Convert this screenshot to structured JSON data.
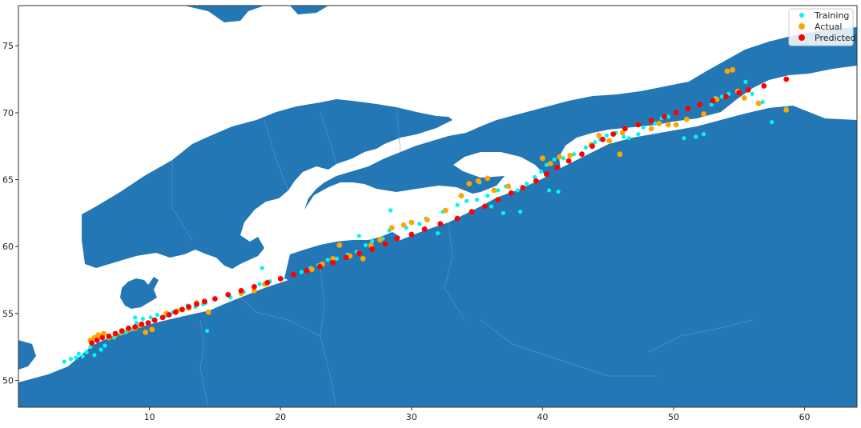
{
  "chart_data": {
    "type": "scatter",
    "title": "",
    "xlabel": "",
    "ylabel": "",
    "xlim": [
      0,
      64
    ],
    "ylim": [
      48,
      78
    ],
    "xticks": [
      10,
      20,
      30,
      40,
      50,
      60
    ],
    "yticks": [
      50,
      55,
      60,
      65,
      70,
      75
    ],
    "grid": false,
    "legend_position": "top-right",
    "background": "map of Northern Europe: land shaded blue, sea white",
    "colors": {
      "land": "#2477b5",
      "sea": "#ffffff",
      "frame": "#333333"
    },
    "series": [
      {
        "name": "Training",
        "color": "#00f5f5",
        "marker_size": "small",
        "points": [
          [
            3.5,
            51.4
          ],
          [
            4.0,
            51.6
          ],
          [
            4.4,
            51.7
          ],
          [
            4.9,
            51.8
          ],
          [
            5.2,
            52.1
          ],
          [
            5.8,
            51.9
          ],
          [
            6.3,
            52.3
          ],
          [
            4.6,
            52.0
          ],
          [
            5.5,
            52.5
          ],
          [
            6.6,
            52.6
          ],
          [
            7.3,
            53.2
          ],
          [
            7.8,
            53.5
          ],
          [
            8.2,
            53.6
          ],
          [
            8.6,
            53.8
          ],
          [
            9.0,
            54.3
          ],
          [
            8.9,
            54.7
          ],
          [
            9.5,
            54.6
          ],
          [
            10.1,
            54.7
          ],
          [
            10.6,
            54.9
          ],
          [
            11.2,
            54.8
          ],
          [
            11.8,
            55.1
          ],
          [
            12.4,
            55.3
          ],
          [
            12.9,
            55.6
          ],
          [
            13.5,
            55.5
          ],
          [
            14.1,
            55.7
          ],
          [
            14.4,
            53.7
          ],
          [
            16.2,
            56.2
          ],
          [
            17.2,
            56.6
          ],
          [
            18.4,
            57.2
          ],
          [
            19.2,
            57.4
          ],
          [
            20.1,
            57.6
          ],
          [
            21.6,
            58.1
          ],
          [
            22.3,
            58.4
          ],
          [
            22.9,
            58.6
          ],
          [
            23.6,
            59.0
          ],
          [
            24.3,
            59.1
          ],
          [
            25.1,
            59.4
          ],
          [
            25.8,
            59.6
          ],
          [
            26.5,
            60.1
          ],
          [
            27.0,
            60.4
          ],
          [
            27.8,
            60.6
          ],
          [
            28.3,
            61.2
          ],
          [
            29.6,
            61.4
          ],
          [
            30.6,
            61.7
          ],
          [
            31.1,
            62.1
          ],
          [
            32.4,
            62.6
          ],
          [
            33.5,
            63.1
          ],
          [
            34.2,
            63.4
          ],
          [
            35.0,
            63.5
          ],
          [
            35.8,
            63.8
          ],
          [
            36.6,
            64.2
          ],
          [
            37.2,
            64.5
          ],
          [
            38.1,
            64.2
          ],
          [
            38.8,
            64.7
          ],
          [
            39.4,
            65.2
          ],
          [
            39.9,
            65.6
          ],
          [
            40.3,
            66.1
          ],
          [
            40.9,
            66.5
          ],
          [
            41.6,
            66.6
          ],
          [
            42.4,
            66.9
          ],
          [
            43.3,
            67.4
          ],
          [
            43.8,
            67.6
          ],
          [
            44.4,
            68.0
          ],
          [
            44.9,
            68.3
          ],
          [
            45.6,
            68.5
          ],
          [
            46.2,
            68.2
          ],
          [
            46.6,
            68.1
          ],
          [
            47.3,
            68.4
          ],
          [
            47.7,
            68.9
          ],
          [
            48.6,
            69.2
          ],
          [
            49.1,
            69.6
          ],
          [
            49.6,
            69.7
          ],
          [
            50.2,
            70.0
          ],
          [
            50.8,
            68.1
          ],
          [
            51.7,
            68.2
          ],
          [
            52.3,
            68.4
          ],
          [
            52.9,
            70.6
          ],
          [
            53.2,
            71.1
          ],
          [
            53.7,
            71.2
          ],
          [
            54.2,
            71.4
          ],
          [
            54.9,
            71.6
          ],
          [
            55.5,
            72.3
          ],
          [
            56.0,
            71.4
          ],
          [
            56.8,
            70.8
          ],
          [
            57.5,
            69.3
          ],
          [
            58.6,
            70.3
          ],
          [
            38.3,
            62.6
          ],
          [
            37.0,
            62.5
          ],
          [
            36.1,
            63.0
          ],
          [
            35.2,
            64.8
          ],
          [
            40.5,
            64.2
          ],
          [
            41.2,
            64.1
          ],
          [
            44.0,
            67.8
          ],
          [
            28.4,
            62.7
          ],
          [
            32.0,
            61.0
          ],
          [
            26.0,
            60.8
          ],
          [
            18.6,
            58.4
          ],
          [
            14.3,
            55.8
          ]
        ]
      },
      {
        "name": "Actual",
        "color": "#ffa500",
        "marker_size": "medium",
        "points": [
          [
            5.5,
            53.0
          ],
          [
            5.8,
            53.2
          ],
          [
            6.1,
            53.4
          ],
          [
            6.5,
            53.5
          ],
          [
            6.9,
            53.2
          ],
          [
            7.4,
            53.4
          ],
          [
            7.9,
            53.6
          ],
          [
            8.4,
            53.8
          ],
          [
            8.9,
            53.9
          ],
          [
            9.3,
            54.1
          ],
          [
            9.7,
            53.6
          ],
          [
            10.2,
            53.8
          ],
          [
            11.3,
            55.0
          ],
          [
            12.1,
            55.2
          ],
          [
            13.0,
            55.4
          ],
          [
            13.6,
            55.8
          ],
          [
            14.5,
            55.1
          ],
          [
            17.0,
            56.5
          ],
          [
            18.0,
            56.7
          ],
          [
            18.8,
            57.2
          ],
          [
            22.4,
            58.3
          ],
          [
            23.2,
            58.7
          ],
          [
            24.0,
            59.1
          ],
          [
            24.5,
            60.1
          ],
          [
            25.3,
            59.3
          ],
          [
            26.3,
            59.1
          ],
          [
            26.9,
            60.1
          ],
          [
            27.6,
            60.5
          ],
          [
            28.5,
            61.4
          ],
          [
            29.4,
            61.6
          ],
          [
            30.0,
            61.8
          ],
          [
            31.2,
            62.0
          ],
          [
            32.6,
            62.7
          ],
          [
            33.8,
            63.8
          ],
          [
            34.4,
            64.7
          ],
          [
            35.1,
            64.9
          ],
          [
            35.8,
            65.1
          ],
          [
            36.3,
            64.2
          ],
          [
            37.4,
            64.5
          ],
          [
            40.0,
            66.6
          ],
          [
            40.6,
            66.2
          ],
          [
            41.3,
            66.7
          ],
          [
            42.1,
            66.8
          ],
          [
            43.7,
            67.6
          ],
          [
            44.3,
            68.3
          ],
          [
            45.1,
            67.9
          ],
          [
            45.9,
            66.9
          ],
          [
            46.1,
            68.5
          ],
          [
            48.3,
            68.8
          ],
          [
            48.9,
            69.2
          ],
          [
            49.6,
            69.1
          ],
          [
            50.2,
            69.1
          ],
          [
            51.0,
            69.5
          ],
          [
            52.3,
            69.9
          ],
          [
            53.3,
            71.0
          ],
          [
            54.1,
            73.1
          ],
          [
            54.5,
            73.2
          ],
          [
            54.9,
            71.6
          ],
          [
            55.4,
            71.1
          ],
          [
            56.5,
            70.7
          ],
          [
            58.6,
            70.2
          ]
        ]
      },
      {
        "name": "Predicted",
        "color": "#ff0000",
        "marker_size": "medium",
        "points": [
          [
            5.6,
            52.8
          ],
          [
            6.0,
            53.0
          ],
          [
            6.4,
            53.2
          ],
          [
            6.9,
            53.3
          ],
          [
            7.4,
            53.5
          ],
          [
            7.9,
            53.7
          ],
          [
            8.4,
            53.9
          ],
          [
            8.9,
            54.0
          ],
          [
            9.4,
            54.2
          ],
          [
            9.9,
            54.3
          ],
          [
            10.4,
            54.5
          ],
          [
            11.0,
            54.7
          ],
          [
            11.5,
            54.9
          ],
          [
            12.0,
            55.1
          ],
          [
            12.5,
            55.3
          ],
          [
            13.0,
            55.5
          ],
          [
            13.6,
            55.7
          ],
          [
            14.2,
            55.9
          ],
          [
            15.0,
            56.1
          ],
          [
            16.0,
            56.4
          ],
          [
            17.0,
            56.7
          ],
          [
            18.0,
            57.0
          ],
          [
            19.0,
            57.3
          ],
          [
            20.0,
            57.6
          ],
          [
            21.0,
            57.9
          ],
          [
            22.0,
            58.2
          ],
          [
            23.0,
            58.5
          ],
          [
            24.0,
            58.8
          ],
          [
            25.0,
            59.2
          ],
          [
            26.0,
            59.5
          ],
          [
            27.0,
            59.8
          ],
          [
            28.0,
            60.2
          ],
          [
            28.9,
            60.6
          ],
          [
            30.0,
            60.9
          ],
          [
            31.0,
            61.3
          ],
          [
            32.2,
            61.7
          ],
          [
            33.5,
            62.1
          ],
          [
            34.6,
            62.6
          ],
          [
            35.6,
            63.0
          ],
          [
            36.6,
            63.5
          ],
          [
            37.6,
            64.0
          ],
          [
            38.5,
            64.4
          ],
          [
            39.5,
            64.9
          ],
          [
            40.3,
            65.4
          ],
          [
            41.1,
            65.9
          ],
          [
            42.0,
            66.4
          ],
          [
            43.0,
            66.9
          ],
          [
            43.8,
            67.5
          ],
          [
            44.6,
            68.0
          ],
          [
            45.4,
            68.4
          ],
          [
            46.3,
            68.8
          ],
          [
            47.3,
            69.1
          ],
          [
            48.3,
            69.4
          ],
          [
            49.3,
            69.7
          ],
          [
            50.2,
            70.0
          ],
          [
            51.1,
            70.3
          ],
          [
            52.0,
            70.6
          ],
          [
            53.0,
            70.9
          ],
          [
            54.0,
            71.2
          ],
          [
            55.0,
            71.5
          ],
          [
            55.7,
            71.7
          ],
          [
            56.9,
            72.0
          ],
          [
            58.6,
            72.5
          ]
        ]
      }
    ]
  }
}
